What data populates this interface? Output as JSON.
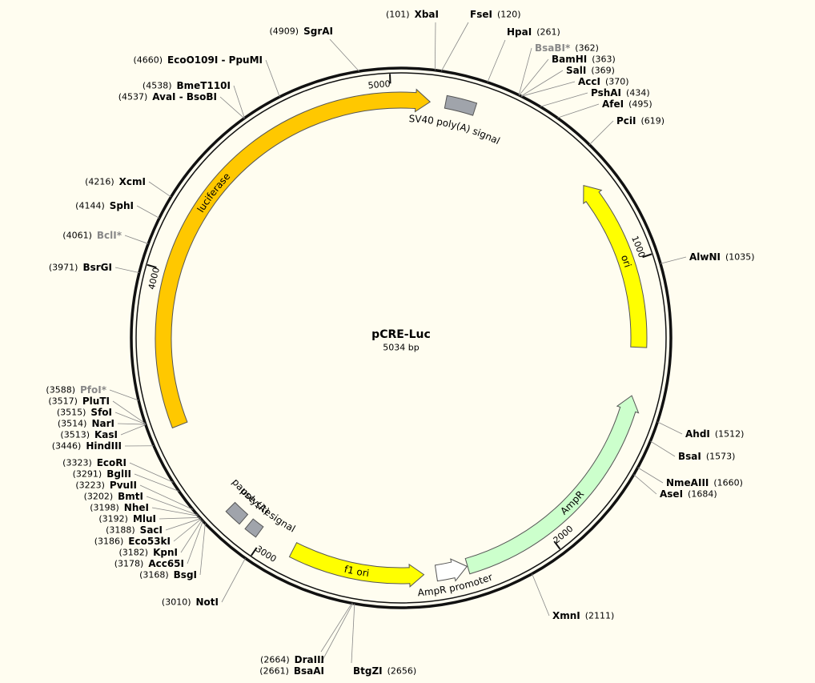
{
  "map": {
    "name": "pCRE-Luc",
    "size": 5034,
    "size_label": "5034 bp",
    "ticks": [
      1000,
      2000,
      3000,
      4000,
      5000
    ],
    "features": [
      {
        "label": "luciferase",
        "start": 3475,
        "end": 98,
        "shape": "arrow",
        "direction": "forward",
        "color": "#ffc800"
      },
      {
        "label": "SV40 poly(A) signal",
        "start": 150,
        "end": 250,
        "shape": "box",
        "color": "#a0a4ab"
      },
      {
        "label": "ori",
        "start": 701,
        "end": 1290,
        "shape": "arrow",
        "direction": "reverse",
        "color": "#ffff00"
      },
      {
        "label": "AmpR",
        "start": 1455,
        "end": 2290,
        "shape": "arrow",
        "direction": "reverse",
        "color": "#ccffcc"
      },
      {
        "label": "AmpR promoter",
        "start": 2292,
        "end": 2398,
        "shape": "arrow",
        "direction": "reverse",
        "color": "#ffffff"
      },
      {
        "label": "f1 ori",
        "start": 2440,
        "end": 2895,
        "shape": "arrow",
        "direction": "reverse",
        "color": "#ffff00"
      },
      {
        "label": "poly(A) signal",
        "start": 3022,
        "end": 3066,
        "shape": "box",
        "color": "#a0a4ab"
      },
      {
        "label": "pause site",
        "start": 3090,
        "end": 3150,
        "shape": "box",
        "color": "#a0a4ab"
      }
    ],
    "sites": [
      {
        "name": "XbaI",
        "position": 101,
        "position_label": "(101)"
      },
      {
        "name": "FseI",
        "position": 120,
        "position_label": "(120)"
      },
      {
        "name": "HpaI",
        "position": 261,
        "position_label": "(261)"
      },
      {
        "name": "BsaBI*",
        "position": 362,
        "position_label": "(362)",
        "gray": true
      },
      {
        "name": "BamHI",
        "position": 363,
        "position_label": "(363)"
      },
      {
        "name": "SalI",
        "position": 369,
        "position_label": "(369)"
      },
      {
        "name": "AccI",
        "position": 370,
        "position_label": "(370)"
      },
      {
        "name": "PshAI",
        "position": 434,
        "position_label": "(434)"
      },
      {
        "name": "AfeI",
        "position": 495,
        "position_label": "(495)"
      },
      {
        "name": "PciI",
        "position": 619,
        "position_label": "(619)"
      },
      {
        "name": "AlwNI",
        "position": 1035,
        "position_label": "(1035)"
      },
      {
        "name": "AhdI",
        "position": 1512,
        "position_label": "(1512)"
      },
      {
        "name": "BsaI",
        "position": 1573,
        "position_label": "(1573)"
      },
      {
        "name": "NmeAIII",
        "position": 1660,
        "position_label": "(1660)"
      },
      {
        "name": "AseI",
        "position": 1684,
        "position_label": "(1684)"
      },
      {
        "name": "XmnI",
        "position": 2111,
        "position_label": "(2111)"
      },
      {
        "name": "BtgZI",
        "position": 2656,
        "position_label": "(2656)"
      },
      {
        "name": "BsaAI",
        "position": 2661,
        "position_label": "(2661)"
      },
      {
        "name": "DraIII",
        "position": 2664,
        "position_label": "(2664)"
      },
      {
        "name": "NotI",
        "position": 3010,
        "position_label": "(3010)"
      },
      {
        "name": "BsgI",
        "position": 3168,
        "position_label": "(3168)"
      },
      {
        "name": "Acc65I",
        "position": 3178,
        "position_label": "(3178)"
      },
      {
        "name": "KpnI",
        "position": 3182,
        "position_label": "(3182)"
      },
      {
        "name": "Eco53kI",
        "position": 3186,
        "position_label": "(3186)"
      },
      {
        "name": "SacI",
        "position": 3188,
        "position_label": "(3188)"
      },
      {
        "name": "MluI",
        "position": 3192,
        "position_label": "(3192)"
      },
      {
        "name": "NheI",
        "position": 3198,
        "position_label": "(3198)"
      },
      {
        "name": "BmtI",
        "position": 3202,
        "position_label": "(3202)"
      },
      {
        "name": "PvuII",
        "position": 3223,
        "position_label": "(3223)"
      },
      {
        "name": "BglII",
        "position": 3291,
        "position_label": "(3291)"
      },
      {
        "name": "EcoRI",
        "position": 3323,
        "position_label": "(3323)"
      },
      {
        "name": "HindIII",
        "position": 3446,
        "position_label": "(3446)"
      },
      {
        "name": "KasI",
        "position": 3513,
        "position_label": "(3513)"
      },
      {
        "name": "NarI",
        "position": 3514,
        "position_label": "(3514)"
      },
      {
        "name": "SfoI",
        "position": 3515,
        "position_label": "(3515)"
      },
      {
        "name": "PluTI",
        "position": 3517,
        "position_label": "(3517)"
      },
      {
        "name": "PfoI*",
        "position": 3588,
        "position_label": "(3588)",
        "gray": true
      },
      {
        "name": "BsrGI",
        "position": 3971,
        "position_label": "(3971)"
      },
      {
        "name": "BclI*",
        "position": 4061,
        "position_label": "(4061)",
        "gray": true
      },
      {
        "name": "SphI",
        "position": 4144,
        "position_label": "(4144)"
      },
      {
        "name": "XcmI",
        "position": 4216,
        "position_label": "(4216)"
      },
      {
        "name": "AvaI - BsoBI",
        "position": 4537,
        "position_label": "(4537)"
      },
      {
        "name": "BmeT110I",
        "position": 4538,
        "position_label": "(4538)"
      },
      {
        "name": "EcoO109I - PpuMI",
        "position": 4660,
        "position_label": "(4660)"
      },
      {
        "name": "SgrAI",
        "position": 4909,
        "position_label": "(4909)"
      }
    ]
  }
}
